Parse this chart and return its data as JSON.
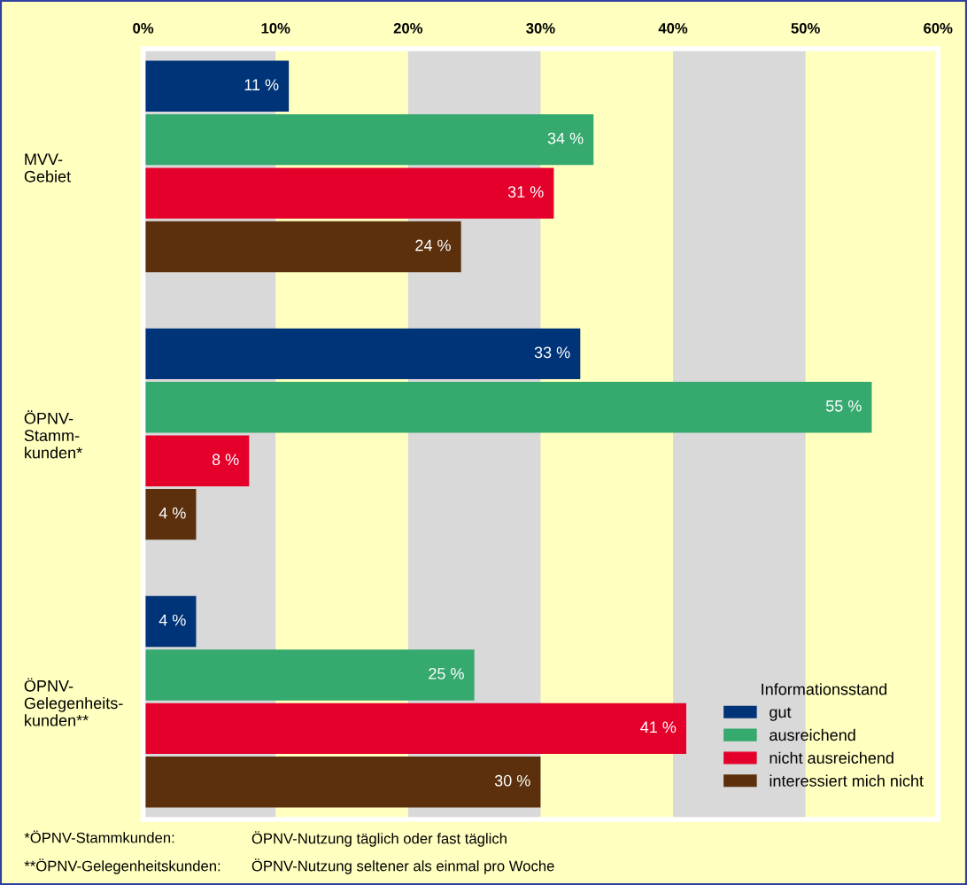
{
  "chart_data": {
    "type": "bar",
    "orientation": "horizontal",
    "categories": [
      "MVV-\nGebiet",
      "ÖPNV-\nStamm-\nkunden*",
      "ÖPNV-\nGelegenheits-\nkunden**"
    ],
    "series": [
      {
        "name": "gut",
        "color": "#003478",
        "values": [
          11,
          33,
          4
        ],
        "value_labels": [
          "11 %",
          "33 %",
          "4 %"
        ]
      },
      {
        "name": "ausreichend",
        "color": "#35a96e",
        "values": [
          34,
          55,
          25
        ],
        "value_labels": [
          "34 %",
          "55 %",
          "25 %"
        ]
      },
      {
        "name": "nicht ausreichend",
        "color": "#e4002b",
        "values": [
          31,
          8,
          41
        ],
        "value_labels": [
          "31 %",
          "8 %",
          "41 %"
        ]
      },
      {
        "name": "interessiert mich nicht",
        "color": "#5c300c",
        "values": [
          24,
          4,
          30
        ],
        "value_labels": [
          "24 %",
          "4 %",
          "30 %"
        ]
      }
    ],
    "xlim": [
      0,
      60
    ],
    "xticks": [
      {
        "value": 0,
        "label": "0%"
      },
      {
        "value": 10,
        "label": "10%"
      },
      {
        "value": 20,
        "label": "20%"
      },
      {
        "value": 30,
        "label": "30%"
      },
      {
        "value": 40,
        "label": "40%"
      },
      {
        "value": 50,
        "label": "50%"
      },
      {
        "value": 60,
        "label": "60%"
      }
    ],
    "bands": [
      {
        "axis": "x",
        "from": 0,
        "to": 10,
        "color": "#d9d9d9"
      },
      {
        "axis": "x",
        "from": 20,
        "to": 30,
        "color": "#d9d9d9"
      },
      {
        "axis": "x",
        "from": 40,
        "to": 50,
        "color": "#d9d9d9"
      }
    ],
    "legend_title": "Informationsstand",
    "legend": "bottom right",
    "grid": false,
    "annotations": [
      "*ÖPNV-Stammkunden:",
      "ÖPNV-Nutzung täglich oder fast täglich",
      "**ÖPNV-Gelegenheitskunden:",
      "ÖPNV-Nutzung seltener als einmal pro Woche"
    ]
  }
}
